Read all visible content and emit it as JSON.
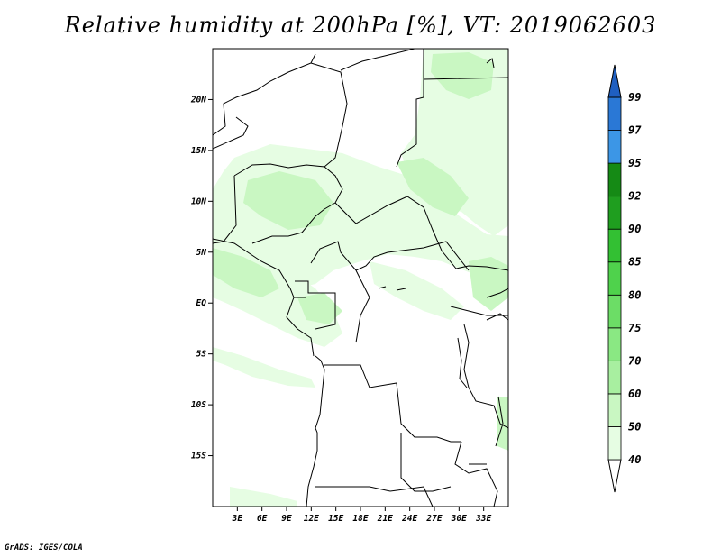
{
  "title": "Relative humidity at 200hPa [%], VT: 2019062603",
  "credit": "GrADS: IGES/COLA",
  "map": {
    "lon_range": [
      0,
      36
    ],
    "lat_range": [
      -20,
      25
    ],
    "lat_ticks": [
      {
        "label": "20N",
        "value": 20
      },
      {
        "label": "15N",
        "value": 15
      },
      {
        "label": "10N",
        "value": 10
      },
      {
        "label": "5N",
        "value": 5
      },
      {
        "label": "EQ",
        "value": 0
      },
      {
        "label": "5S",
        "value": -5
      },
      {
        "label": "10S",
        "value": -10
      },
      {
        "label": "15S",
        "value": -15
      }
    ],
    "lon_ticks": [
      {
        "label": "3E",
        "value": 3
      },
      {
        "label": "6E",
        "value": 6
      },
      {
        "label": "9E",
        "value": 9
      },
      {
        "label": "12E",
        "value": 12
      },
      {
        "label": "15E",
        "value": 15
      },
      {
        "label": "18E",
        "value": 18
      },
      {
        "label": "21E",
        "value": 21
      },
      {
        "label": "24E",
        "value": 24
      },
      {
        "label": "27E",
        "value": 27
      },
      {
        "label": "30E",
        "value": 30
      },
      {
        "label": "33E",
        "value": 33
      }
    ]
  },
  "legend": {
    "levels": [
      "40",
      "50",
      "60",
      "70",
      "75",
      "80",
      "85",
      "90",
      "92",
      "95",
      "97",
      "99"
    ],
    "colors": [
      "#e6fde3",
      "#c9f7c2",
      "#a8efa0",
      "#8ae883",
      "#6cdd66",
      "#4fd24c",
      "#33c033",
      "#1f9e1f",
      "#158a15",
      "#3c96e6",
      "#2a78d6",
      "#1f5fc1"
    ]
  }
}
